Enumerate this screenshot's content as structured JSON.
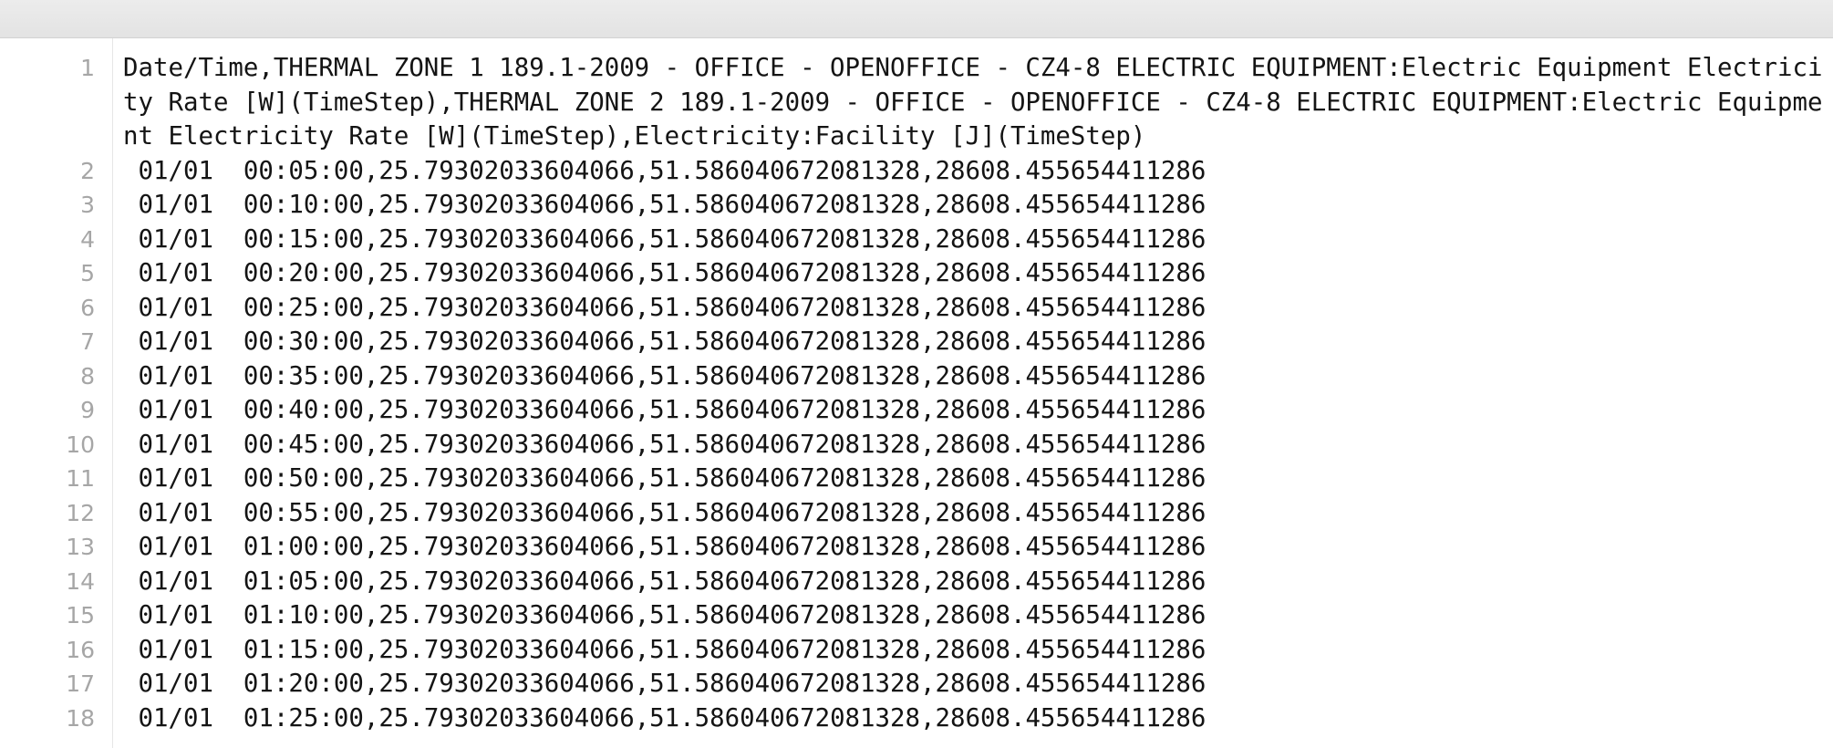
{
  "editor": {
    "lines": [
      {
        "n": "1",
        "text": "Date/Time,THERMAL ZONE 1 189.1-2009 - OFFICE - OPENOFFICE - CZ4-8 ELECTRIC EQUIPMENT:Electric Equipment Electricity Rate [W](TimeStep),THERMAL ZONE 2 189.1-2009 - OFFICE - OPENOFFICE - CZ4-8 ELECTRIC EQUIPMENT:Electric Equipment Electricity Rate [W](TimeStep),Electricity:Facility [J](TimeStep)"
      },
      {
        "n": "2",
        "text": " 01/01  00:05:00,25.79302033604066,51.586040672081328,28608.455654411286"
      },
      {
        "n": "3",
        "text": " 01/01  00:10:00,25.79302033604066,51.586040672081328,28608.455654411286"
      },
      {
        "n": "4",
        "text": " 01/01  00:15:00,25.79302033604066,51.586040672081328,28608.455654411286"
      },
      {
        "n": "5",
        "text": " 01/01  00:20:00,25.79302033604066,51.586040672081328,28608.455654411286"
      },
      {
        "n": "6",
        "text": " 01/01  00:25:00,25.79302033604066,51.586040672081328,28608.455654411286"
      },
      {
        "n": "7",
        "text": " 01/01  00:30:00,25.79302033604066,51.586040672081328,28608.455654411286"
      },
      {
        "n": "8",
        "text": " 01/01  00:35:00,25.79302033604066,51.586040672081328,28608.455654411286"
      },
      {
        "n": "9",
        "text": " 01/01  00:40:00,25.79302033604066,51.586040672081328,28608.455654411286"
      },
      {
        "n": "10",
        "text": " 01/01  00:45:00,25.79302033604066,51.586040672081328,28608.455654411286"
      },
      {
        "n": "11",
        "text": " 01/01  00:50:00,25.79302033604066,51.586040672081328,28608.455654411286"
      },
      {
        "n": "12",
        "text": " 01/01  00:55:00,25.79302033604066,51.586040672081328,28608.455654411286"
      },
      {
        "n": "13",
        "text": " 01/01  01:00:00,25.79302033604066,51.586040672081328,28608.455654411286"
      },
      {
        "n": "14",
        "text": " 01/01  01:05:00,25.79302033604066,51.586040672081328,28608.455654411286"
      },
      {
        "n": "15",
        "text": " 01/01  01:10:00,25.79302033604066,51.586040672081328,28608.455654411286"
      },
      {
        "n": "16",
        "text": " 01/01  01:15:00,25.79302033604066,51.586040672081328,28608.455654411286"
      },
      {
        "n": "17",
        "text": " 01/01  01:20:00,25.79302033604066,51.586040672081328,28608.455654411286"
      },
      {
        "n": "18",
        "text": " 01/01  01:25:00,25.79302033604066,51.586040672081328,28608.455654411286"
      }
    ]
  }
}
